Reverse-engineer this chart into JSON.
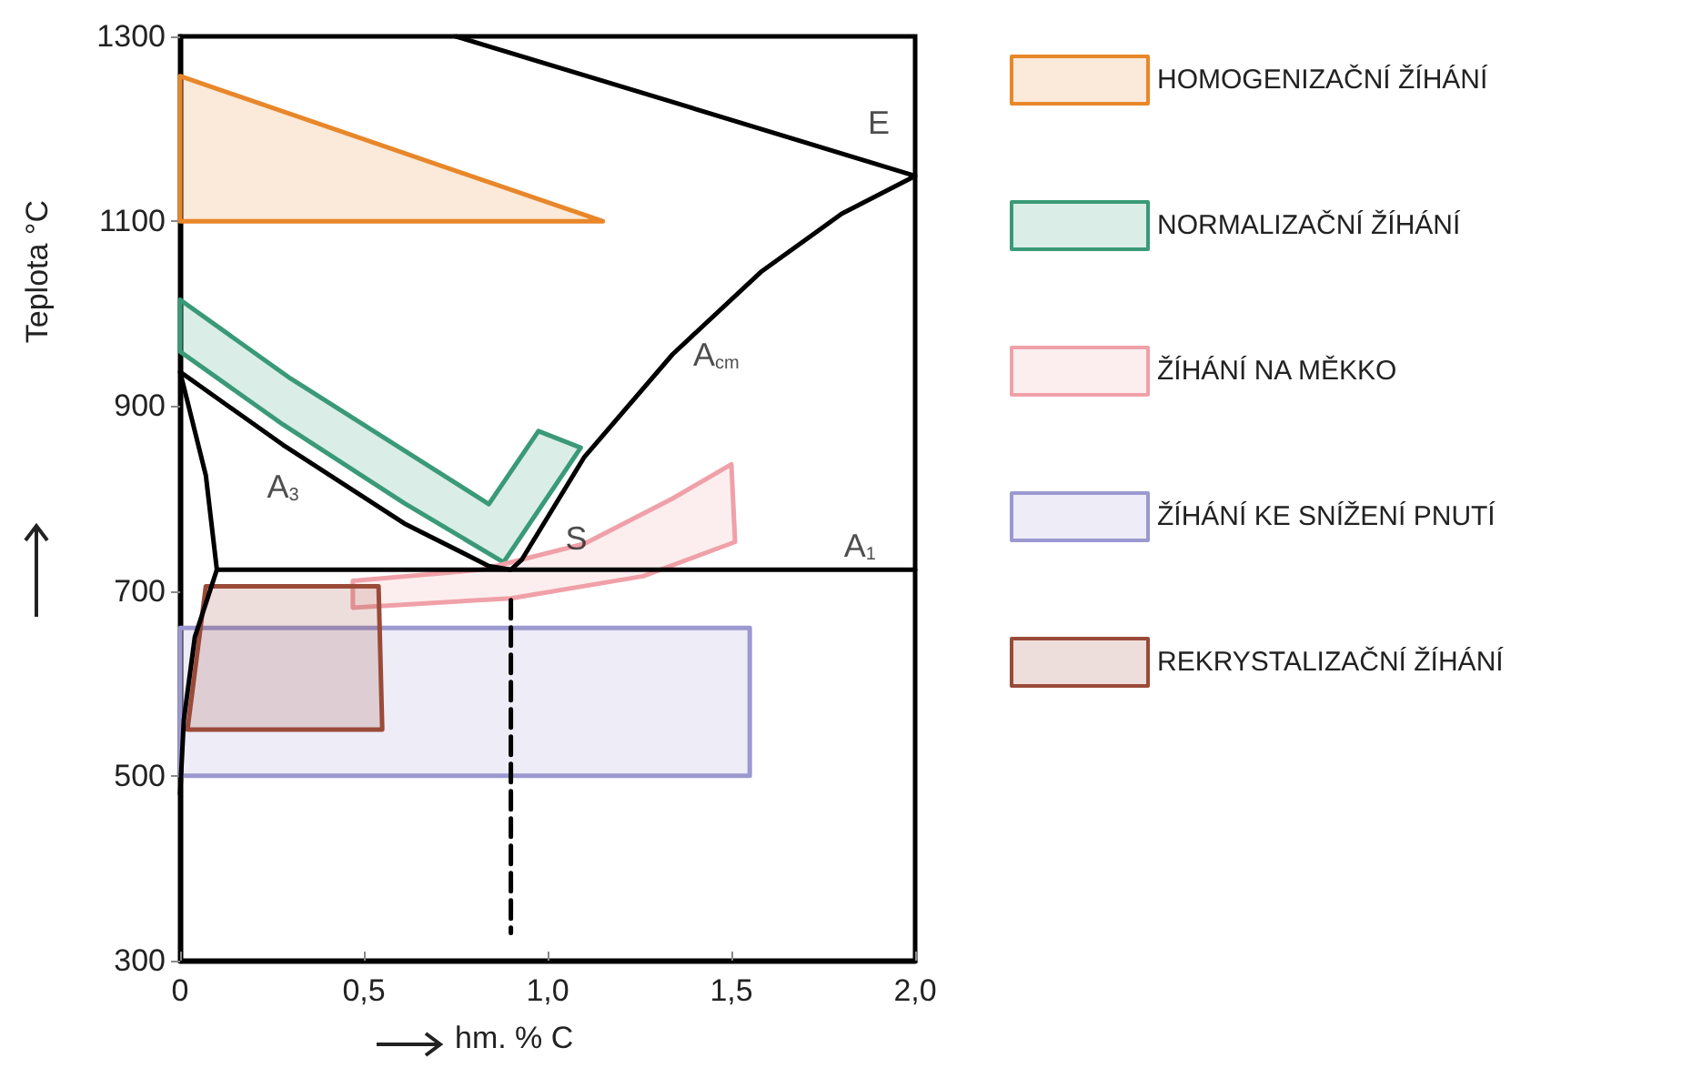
{
  "chart_data": {
    "type": "line",
    "xlabel": "hm. % C",
    "ylabel": "Teplota °C",
    "xlim": [
      0,
      2.0
    ],
    "ylim": [
      300,
      1300
    ],
    "xticks": [
      {
        "value": 0,
        "label": "0"
      },
      {
        "value": 0.5,
        "label": "0,5"
      },
      {
        "value": 1.0,
        "label": "1,0"
      },
      {
        "value": 1.5,
        "label": "1,5"
      },
      {
        "value": 2.0,
        "label": "2,0"
      }
    ],
    "yticks": [
      300,
      500,
      700,
      900,
      1100,
      1300
    ],
    "grid": false,
    "legend": "right",
    "marker": "none",
    "series": [
      {
        "name": "HOMOGENIZAČNÍ ŽÍHÁNÍ",
        "type": "area",
        "color": "#e8872a",
        "x": [
          0,
          1.15,
          0
        ],
        "values": [
          1257,
          1100,
          1100
        ]
      },
      {
        "name": "NORMALIZAČNÍ ŽÍHÁNÍ",
        "type": "area",
        "color": "#3a9a78",
        "x": [
          0,
          0.3,
          0.84,
          0.975,
          1.09,
          0.88,
          0.61,
          0.28,
          0
        ],
        "values": [
          1015,
          930,
          794,
          873,
          855,
          731,
          795,
          880,
          959
        ]
      },
      {
        "name": "ŽÍHÁNÍ NA MĚKKO",
        "type": "area",
        "color": "#f0a0a8",
        "x": [
          0.47,
          0.82,
          1.1,
          1.34,
          1.5,
          1.51,
          1.26,
          0.9,
          0.47
        ],
        "values": [
          711,
          723,
          751,
          800,
          837,
          753,
          716,
          692,
          682
        ]
      },
      {
        "name": "ŽÍHÁNÍ KE SNÍŽENÍ PNUTÍ",
        "type": "area",
        "color": "#9c98d0",
        "x": [
          0,
          1.55,
          1.55,
          0
        ],
        "values": [
          660,
          660,
          500,
          500
        ]
      },
      {
        "name": "REKRYSTALIZAČNÍ ŽÍHÁNÍ",
        "type": "area",
        "color": "#9a4a38",
        "x": [
          0.07,
          0.54,
          0.55,
          0.02
        ],
        "values": [
          705,
          705,
          550,
          550
        ]
      },
      {
        "color": "#000000",
        "x": [
          0.75,
          1.34,
          2.0,
          1.8,
          1.58,
          1.34,
          1.1,
          0.93,
          0.9,
          0.84,
          0.61,
          0.28,
          0,
          0.07,
          0.1,
          0.04,
          0.01,
          0
        ],
        "values": [
          1300,
          1229,
          1149,
          1108,
          1045,
          956,
          845,
          734,
          723,
          727,
          773,
          858,
          937,
          825,
          723,
          650,
          560,
          480
        ]
      },
      {
        "color": "#000000",
        "x": [
          0.1,
          2.0
        ],
        "values": [
          723,
          723
        ]
      },
      {
        "color": "#000000",
        "line_style": "dashed",
        "x": [
          0.9,
          0.9
        ],
        "values": [
          690,
          330
        ]
      }
    ],
    "annotations": [
      {
        "text": "E",
        "x": 2.0,
        "y": 1149
      },
      {
        "text": "A$_{cm}$",
        "x": 1.34,
        "y": 956
      },
      {
        "text": "A$_{3}$",
        "x": 0.28,
        "y": 858
      },
      {
        "text": "S",
        "x": 0.9,
        "y": 723
      },
      {
        "text": "A$_{1}$",
        "x": 1.85,
        "y": 723
      }
    ]
  }
}
